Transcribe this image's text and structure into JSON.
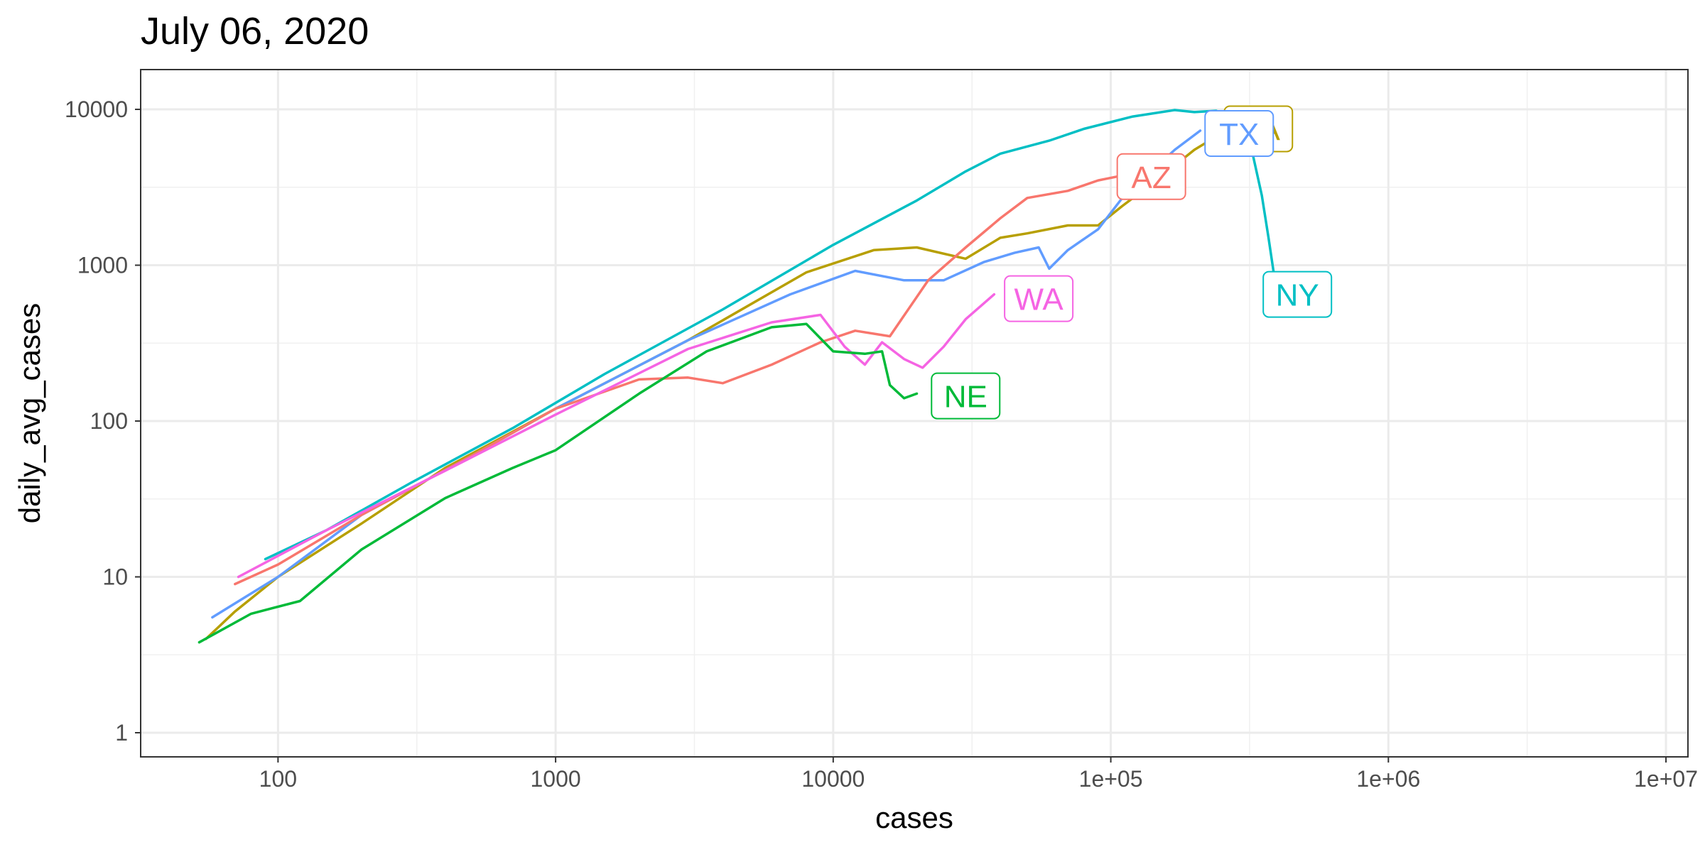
{
  "chart_data": {
    "type": "line",
    "title": "July 06, 2020",
    "xlabel": "cases",
    "ylabel": "daily_avg_cases",
    "x_scale": "log10",
    "y_scale": "log10",
    "xlim": [
      32,
      12000000
    ],
    "ylim": [
      0.7,
      18000
    ],
    "grid": true,
    "legend": "none (direct labels)",
    "x_ticks": [
      {
        "value": 100,
        "label": "100"
      },
      {
        "value": 1000,
        "label": "1000"
      },
      {
        "value": 10000,
        "label": "10000"
      },
      {
        "value": 100000,
        "label": "1e+05"
      },
      {
        "value": 1000000,
        "label": "1e+06"
      },
      {
        "value": 10000000,
        "label": "1e+07"
      }
    ],
    "y_ticks": [
      {
        "value": 1,
        "label": "1"
      },
      {
        "value": 10,
        "label": "10"
      },
      {
        "value": 100,
        "label": "100"
      },
      {
        "value": 1000,
        "label": "1000"
      },
      {
        "value": 10000,
        "label": "10000"
      }
    ],
    "series": [
      {
        "name": "NY",
        "color": "#00BFC4",
        "points": [
          [
            90,
            13
          ],
          [
            150,
            20
          ],
          [
            300,
            40
          ],
          [
            700,
            90
          ],
          [
            1500,
            200
          ],
          [
            4000,
            520
          ],
          [
            10000,
            1350
          ],
          [
            20000,
            2600
          ],
          [
            30000,
            4000
          ],
          [
            40000,
            5200
          ],
          [
            60000,
            6300
          ],
          [
            80000,
            7500
          ],
          [
            120000,
            9000
          ],
          [
            170000,
            9900
          ],
          [
            200000,
            9600
          ],
          [
            240000,
            9800
          ],
          [
            280000,
            8500
          ],
          [
            310000,
            7500
          ],
          [
            330000,
            4500
          ],
          [
            350000,
            2800
          ],
          [
            370000,
            1500
          ],
          [
            390000,
            800
          ],
          [
            405000,
            620
          ]
        ],
        "label_at": [
          470000,
          650
        ]
      },
      {
        "name": "CA",
        "color": "#B79F00",
        "points": [
          [
            55,
            4
          ],
          [
            70,
            6
          ],
          [
            100,
            10
          ],
          [
            200,
            22
          ],
          [
            400,
            50
          ],
          [
            1000,
            120
          ],
          [
            3000,
            330
          ],
          [
            8000,
            900
          ],
          [
            14000,
            1250
          ],
          [
            20000,
            1300
          ],
          [
            30000,
            1100
          ],
          [
            40000,
            1500
          ],
          [
            50000,
            1600
          ],
          [
            70000,
            1800
          ],
          [
            90000,
            1800
          ],
          [
            110000,
            2400
          ],
          [
            130000,
            3000
          ],
          [
            160000,
            4000
          ],
          [
            200000,
            5500
          ],
          [
            240000,
            6700
          ],
          [
            270000,
            7400
          ]
        ],
        "label_at": [
          340000,
          7500
        ]
      },
      {
        "name": "TX",
        "color": "#619CFF",
        "points": [
          [
            58,
            5.5
          ],
          [
            100,
            10
          ],
          [
            200,
            25
          ],
          [
            500,
            60
          ],
          [
            1000,
            120
          ],
          [
            3000,
            330
          ],
          [
            7000,
            650
          ],
          [
            12000,
            920
          ],
          [
            18000,
            800
          ],
          [
            25000,
            800
          ],
          [
            35000,
            1050
          ],
          [
            45000,
            1200
          ],
          [
            55000,
            1300
          ],
          [
            60000,
            950
          ],
          [
            70000,
            1250
          ],
          [
            90000,
            1700
          ],
          [
            110000,
            2700
          ],
          [
            140000,
            4000
          ],
          [
            170000,
            5500
          ],
          [
            210000,
            7300
          ]
        ],
        "label_at": [
          290000,
          7000
        ]
      },
      {
        "name": "AZ",
        "color": "#F8766D",
        "points": [
          [
            70,
            9
          ],
          [
            100,
            12
          ],
          [
            200,
            25
          ],
          [
            500,
            60
          ],
          [
            1000,
            120
          ],
          [
            2000,
            185
          ],
          [
            3000,
            190
          ],
          [
            4000,
            175
          ],
          [
            6000,
            230
          ],
          [
            9000,
            320
          ],
          [
            12000,
            380
          ],
          [
            16000,
            350
          ],
          [
            22000,
            800
          ],
          [
            30000,
            1300
          ],
          [
            40000,
            2000
          ],
          [
            50000,
            2700
          ],
          [
            70000,
            3000
          ],
          [
            90000,
            3500
          ],
          [
            105000,
            3700
          ]
        ],
        "label_at": [
          140000,
          3700
        ]
      },
      {
        "name": "WA",
        "color": "#F564E3",
        "points": [
          [
            72,
            10
          ],
          [
            150,
            20
          ],
          [
            400,
            48
          ],
          [
            1000,
            110
          ],
          [
            3000,
            290
          ],
          [
            6000,
            430
          ],
          [
            9000,
            480
          ],
          [
            11000,
            300
          ],
          [
            13000,
            230
          ],
          [
            15000,
            320
          ],
          [
            18000,
            250
          ],
          [
            21000,
            220
          ],
          [
            25000,
            300
          ],
          [
            30000,
            450
          ],
          [
            38000,
            650
          ]
        ],
        "label_at": [
          55000,
          610
        ]
      },
      {
        "name": "NE",
        "color": "#00BA38",
        "points": [
          [
            52,
            3.8
          ],
          [
            80,
            5.8
          ],
          [
            120,
            7
          ],
          [
            200,
            15
          ],
          [
            400,
            32
          ],
          [
            700,
            50
          ],
          [
            1000,
            65
          ],
          [
            2000,
            150
          ],
          [
            3500,
            280
          ],
          [
            6000,
            400
          ],
          [
            8000,
            420
          ],
          [
            10000,
            280
          ],
          [
            13000,
            270
          ],
          [
            15000,
            280
          ],
          [
            16000,
            170
          ],
          [
            18000,
            140
          ],
          [
            20000,
            150
          ]
        ],
        "label_at": [
          30000,
          145
        ]
      }
    ]
  }
}
